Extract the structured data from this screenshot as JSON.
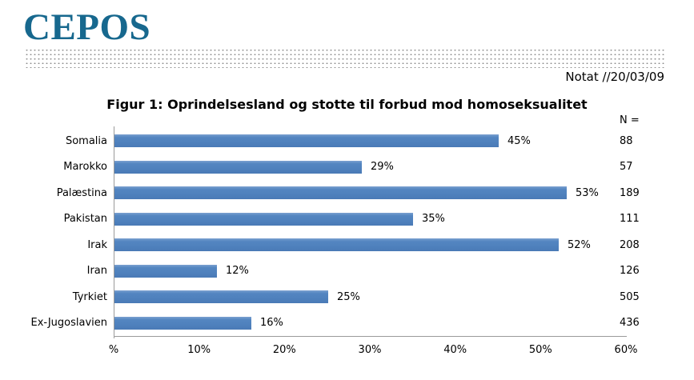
{
  "header": {
    "logo_text": "CEPOS",
    "logo_color": "#17688e",
    "notat_label": "Notat //20/03/09"
  },
  "chart_data": {
    "type": "bar",
    "orientation": "horizontal",
    "title": "Figur 1: Oprindelsesland og stotte til forbud mod homoseksualitet",
    "n_header": "N =",
    "categories": [
      "Somalia",
      "Marokko",
      "Palæstina",
      "Pakistan",
      "Irak",
      "Iran",
      "Tyrkiet",
      "Ex-Jugoslavien"
    ],
    "values": [
      45,
      29,
      53,
      35,
      52,
      12,
      25,
      16
    ],
    "value_labels": [
      "45%",
      "29%",
      "53%",
      "35%",
      "52%",
      "12%",
      "25%",
      "16%"
    ],
    "n_values": [
      "88",
      "57",
      "189",
      "111",
      "208",
      "126",
      "505",
      "436"
    ],
    "x_ticks": [
      "%",
      "10%",
      "20%",
      "30%",
      "40%",
      "50%",
      "60%"
    ],
    "xlim": [
      0,
      60
    ],
    "grid": false,
    "legend": "none",
    "bar_color": "#4f81bd",
    "axis_color": "#9b9b9b"
  }
}
